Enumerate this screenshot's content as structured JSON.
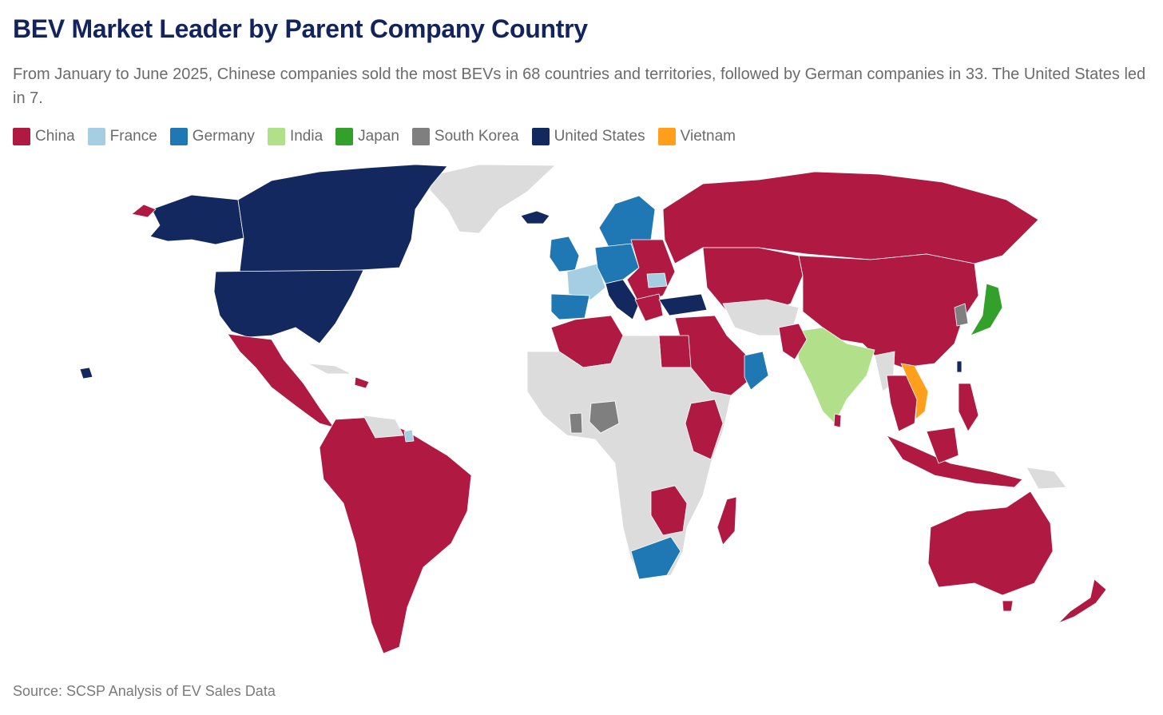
{
  "header": {
    "title": "BEV Market Leader by Parent Company Country",
    "subtitle": "From January to June 2025, Chinese companies sold the most BEVs in 68 countries and territories, followed by German companies in 33. The United States led in 7."
  },
  "legend": [
    {
      "label": "China",
      "color": "#b01942"
    },
    {
      "label": "France",
      "color": "#a6cee3"
    },
    {
      "label": "Germany",
      "color": "#1f78b4"
    },
    {
      "label": "India",
      "color": "#b2df8a"
    },
    {
      "label": "Japan",
      "color": "#33a02c"
    },
    {
      "label": "South Korea",
      "color": "#7f7f7f"
    },
    {
      "label": "United States",
      "color": "#13285e"
    },
    {
      "label": "Vietnam",
      "color": "#ff9f1c"
    }
  ],
  "no_data_color": "#dcdcdc",
  "source": "Source: SCSP Analysis of EV Sales Data"
}
